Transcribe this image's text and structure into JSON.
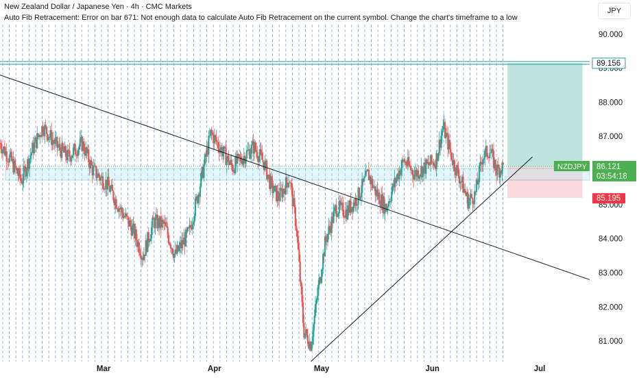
{
  "header": {
    "title": "New Zealand Dollar / Japanese Yen · 4h · CMC Markets",
    "error_text": "Auto Fib Retracement: Error on bar 671: Not enough data to calculate Auto Fib Retracement on the current symbol. Change the chart's timeframe to a low"
  },
  "currency_button": "JPY",
  "colors": {
    "up": "#26a69a",
    "down": "#ef5350",
    "fib_lines": "#2962ff",
    "target_zone": "#a8dcd2",
    "stop_zone": "#f7cfd2",
    "level": "#1e9aa0",
    "price_tag": "#4caf50",
    "stop_tag": "#f23645",
    "trendline": "#131722"
  },
  "price_labels": {
    "symbol": "NZDJPY",
    "current": "86.121",
    "countdown": "03:54:18",
    "target": "89.156",
    "stop": "85.195"
  },
  "chart_data": {
    "type": "candlestick",
    "title": "New Zealand Dollar / Japanese Yen · 4h · CMC Markets",
    "symbol": "NZDJPY",
    "timeframe": "4h",
    "y_axis": {
      "ticks": [
        81.0,
        82.0,
        83.0,
        84.0,
        85.0,
        86.0,
        87.0,
        88.0,
        89.0,
        90.0
      ],
      "tick_labels": [
        "81.000",
        "82.000",
        "83.000",
        "84.000",
        "85.000",
        "86.000",
        "87.000",
        "88.000",
        "89.000",
        "90.000"
      ],
      "range": [
        80.4,
        91.0
      ],
      "side": "right"
    },
    "x_axis": {
      "tick_labels": [
        "Mar",
        "Apr",
        "May",
        "Jun",
        "Jul"
      ],
      "tick_dates": [
        "Mar 1",
        "Apr 1",
        "May 1",
        "Jun 1",
        "Jul 1"
      ],
      "range": [
        "Feb 1",
        "Jul 15"
      ]
    },
    "price_path": [
      {
        "date": "Feb 1",
        "price": 86.8
      },
      {
        "date": "Feb 4",
        "price": 86.3
      },
      {
        "date": "Feb 7",
        "price": 85.7
      },
      {
        "date": "Feb 10",
        "price": 86.6
      },
      {
        "date": "Feb 13",
        "price": 87.3
      },
      {
        "date": "Feb 17",
        "price": 86.7
      },
      {
        "date": "Feb 20",
        "price": 86.4
      },
      {
        "date": "Feb 24",
        "price": 86.8
      },
      {
        "date": "Feb 27",
        "price": 86.0
      },
      {
        "date": "Mar 2",
        "price": 85.6
      },
      {
        "date": "Mar 6",
        "price": 84.8
      },
      {
        "date": "Mar 9",
        "price": 84.3
      },
      {
        "date": "Mar 12",
        "price": 83.5
      },
      {
        "date": "Mar 15",
        "price": 84.5
      },
      {
        "date": "Mar 18",
        "price": 84.4
      },
      {
        "date": "Mar 21",
        "price": 83.5
      },
      {
        "date": "Mar 25",
        "price": 84.2
      },
      {
        "date": "Mar 28",
        "price": 85.6
      },
      {
        "date": "Mar 31",
        "price": 87.1
      },
      {
        "date": "Apr 3",
        "price": 86.6
      },
      {
        "date": "Apr 6",
        "price": 86.1
      },
      {
        "date": "Apr 9",
        "price": 86.4
      },
      {
        "date": "Apr 12",
        "price": 86.7
      },
      {
        "date": "Apr 15",
        "price": 86.2
      },
      {
        "date": "Apr 17",
        "price": 85.5
      },
      {
        "date": "Apr 19",
        "price": 85.2
      },
      {
        "date": "Apr 22",
        "price": 85.8
      },
      {
        "date": "Apr 24",
        "price": 84.3
      },
      {
        "date": "Apr 26",
        "price": 81.3
      },
      {
        "date": "Apr 28",
        "price": 80.9
      },
      {
        "date": "Apr 30",
        "price": 82.5
      },
      {
        "date": "May 2",
        "price": 83.9
      },
      {
        "date": "May 5",
        "price": 84.9
      },
      {
        "date": "May 8",
        "price": 84.8
      },
      {
        "date": "May 11",
        "price": 85.2
      },
      {
        "date": "May 14",
        "price": 85.9
      },
      {
        "date": "May 16",
        "price": 85.4
      },
      {
        "date": "May 19",
        "price": 84.9
      },
      {
        "date": "May 22",
        "price": 85.8
      },
      {
        "date": "May 24",
        "price": 86.3
      },
      {
        "date": "May 27",
        "price": 85.9
      },
      {
        "date": "May 30",
        "price": 86.1
      },
      {
        "date": "Jun 2",
        "price": 86.3
      },
      {
        "date": "Jun 4",
        "price": 87.3
      },
      {
        "date": "Jun 7",
        "price": 86.2
      },
      {
        "date": "Jun 9",
        "price": 85.7
      },
      {
        "date": "Jun 11",
        "price": 85.1
      },
      {
        "date": "Jun 13",
        "price": 85.3
      },
      {
        "date": "Jun 15",
        "price": 86.4
      },
      {
        "date": "Jun 17",
        "price": 86.6
      },
      {
        "date": "Jun 19",
        "price": 86.0
      },
      {
        "date": "Jun 21",
        "price": 86.12
      }
    ],
    "horizontal_lines": [
      {
        "name": "target-level",
        "price": 89.156
      },
      {
        "name": "support-zone-top",
        "price": 86.06
      },
      {
        "name": "support-zone-bottom",
        "price": 85.72
      }
    ],
    "trendlines": [
      {
        "name": "descending-trendline",
        "from": {
          "date": "Feb 1",
          "price": 88.8
        },
        "to": {
          "date": "Jul 15",
          "price": 82.8
        }
      },
      {
        "name": "ascending-trendline",
        "from": {
          "date": "Apr 28",
          "price": 80.4
        },
        "to": {
          "date": "Jun 29",
          "price": 86.4
        }
      }
    ],
    "long_position": {
      "start": "Jun 22",
      "end": "Jul 13",
      "entry": 86.121,
      "target": 89.156,
      "stop": 85.195
    },
    "grid": false
  }
}
